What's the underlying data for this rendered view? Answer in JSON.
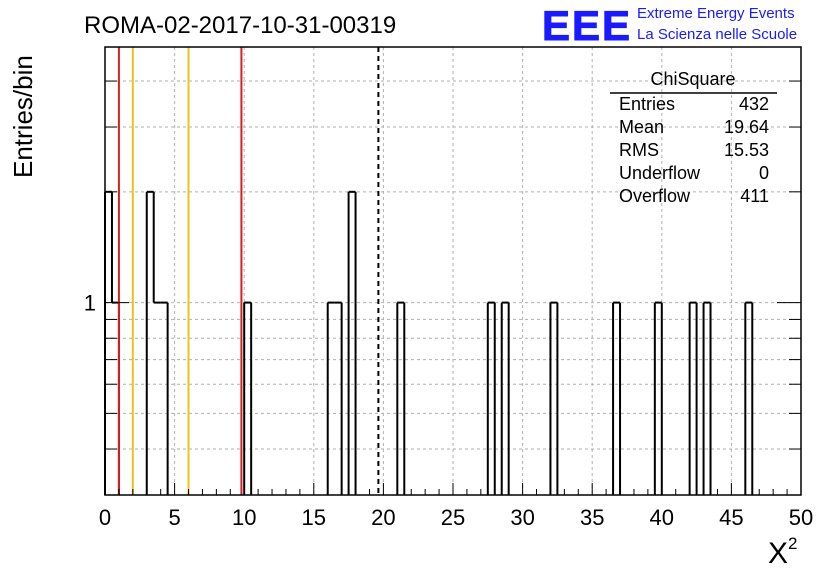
{
  "header": {
    "run_title": "ROMA-02-2017-10-31-00319",
    "logo_text": "EEE",
    "logo_line1": "Extreme Energy Events",
    "logo_line2": "La Scienza nelle Scuole",
    "logo_color": "#1a1aff"
  },
  "stats": {
    "title": "ChiSquare",
    "rows": [
      {
        "label": "Entries",
        "value": "432"
      },
      {
        "label": "Mean",
        "value": "19.64"
      },
      {
        "label": "RMS",
        "value": "15.53"
      },
      {
        "label": "Underflow",
        "value": "0"
      },
      {
        "label": "Overflow",
        "value": "411"
      }
    ]
  },
  "chart_data": {
    "type": "histogram",
    "title": "ROMA-02-2017-10-31-00319",
    "xlabel": "X",
    "xlabel_sup": "2",
    "ylabel": "Entries/bin",
    "xlim": [
      0,
      50
    ],
    "ylim": [
      0.3,
      4.95
    ],
    "yscale": "log",
    "bin_width": 0.5,
    "x_ticks": [
      0,
      5,
      10,
      15,
      20,
      25,
      30,
      35,
      40,
      45,
      50
    ],
    "x_tick_labels": [
      "0",
      "5",
      "10",
      "15",
      "20",
      "25",
      "30",
      "35",
      "40",
      "45",
      "50"
    ],
    "y_tick_labels": [
      {
        "value": 1,
        "label": "1"
      }
    ],
    "grid": true,
    "bins": [
      {
        "x0": 0.0,
        "count": 2
      },
      {
        "x0": 0.5,
        "count": 1
      },
      {
        "x0": 3.0,
        "count": 2
      },
      {
        "x0": 3.5,
        "count": 1
      },
      {
        "x0": 4.0,
        "count": 1
      },
      {
        "x0": 10.0,
        "count": 1
      },
      {
        "x0": 16.0,
        "count": 1
      },
      {
        "x0": 16.5,
        "count": 1
      },
      {
        "x0": 17.5,
        "count": 2
      },
      {
        "x0": 21.0,
        "count": 1
      },
      {
        "x0": 27.5,
        "count": 1
      },
      {
        "x0": 28.5,
        "count": 1
      },
      {
        "x0": 32.0,
        "count": 1
      },
      {
        "x0": 36.5,
        "count": 1
      },
      {
        "x0": 39.5,
        "count": 1
      },
      {
        "x0": 42.0,
        "count": 1
      },
      {
        "x0": 43.0,
        "count": 1
      },
      {
        "x0": 46.0,
        "count": 1
      }
    ],
    "reference_lines": [
      {
        "x": 1.0,
        "color": "#d62020",
        "style": "solid"
      },
      {
        "x": 9.8,
        "color": "#d62020",
        "style": "solid"
      },
      {
        "x": 2.0,
        "color": "#f0c020",
        "style": "solid"
      },
      {
        "x": 6.0,
        "color": "#f0c020",
        "style": "solid"
      },
      {
        "x": 19.64,
        "color": "#000000",
        "style": "dashed"
      }
    ]
  }
}
